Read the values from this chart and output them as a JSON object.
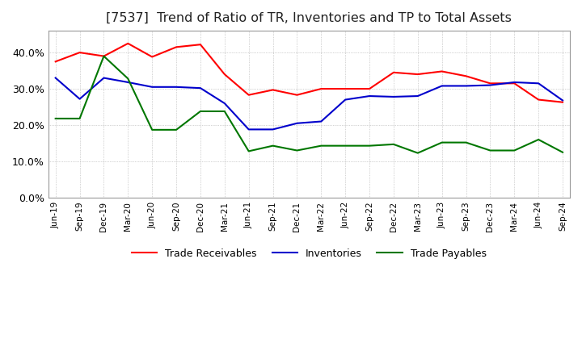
{
  "title": "[7537]  Trend of Ratio of TR, Inventories and TP to Total Assets",
  "x_labels": [
    "Jun-19",
    "Sep-19",
    "Dec-19",
    "Mar-20",
    "Jun-20",
    "Sep-20",
    "Dec-20",
    "Mar-21",
    "Jun-21",
    "Sep-21",
    "Dec-21",
    "Mar-22",
    "Jun-22",
    "Sep-22",
    "Dec-22",
    "Mar-23",
    "Jun-23",
    "Sep-23",
    "Dec-23",
    "Mar-24",
    "Jun-24",
    "Sep-24"
  ],
  "trade_receivables": [
    0.375,
    0.4,
    0.39,
    0.425,
    0.388,
    0.415,
    0.422,
    0.34,
    0.283,
    0.297,
    0.283,
    0.3,
    0.3,
    0.3,
    0.345,
    0.34,
    0.348,
    0.335,
    0.315,
    0.315,
    0.27,
    0.263
  ],
  "inventories": [
    0.33,
    0.272,
    0.33,
    0.318,
    0.305,
    0.305,
    0.302,
    0.26,
    0.188,
    0.188,
    0.205,
    0.21,
    0.27,
    0.28,
    0.278,
    0.28,
    0.308,
    0.308,
    0.31,
    0.318,
    0.315,
    0.268
  ],
  "trade_payables": [
    0.218,
    0.218,
    0.39,
    0.328,
    0.187,
    0.187,
    0.238,
    0.238,
    0.128,
    0.143,
    0.13,
    0.143,
    0.143,
    0.143,
    0.147,
    0.123,
    0.152,
    0.152,
    0.13,
    0.13,
    0.16,
    0.125
  ],
  "tr_color": "#ff0000",
  "inv_color": "#0000cc",
  "tp_color": "#007700",
  "ylim": [
    0.0,
    0.46
  ],
  "yticks": [
    0.0,
    0.1,
    0.2,
    0.3,
    0.4
  ],
  "background_color": "#ffffff",
  "plot_bg_color": "#ffffff",
  "grid_color": "#aaaaaa",
  "title_fontsize": 11.5,
  "legend_labels": [
    "Trade Receivables",
    "Inventories",
    "Trade Payables"
  ]
}
